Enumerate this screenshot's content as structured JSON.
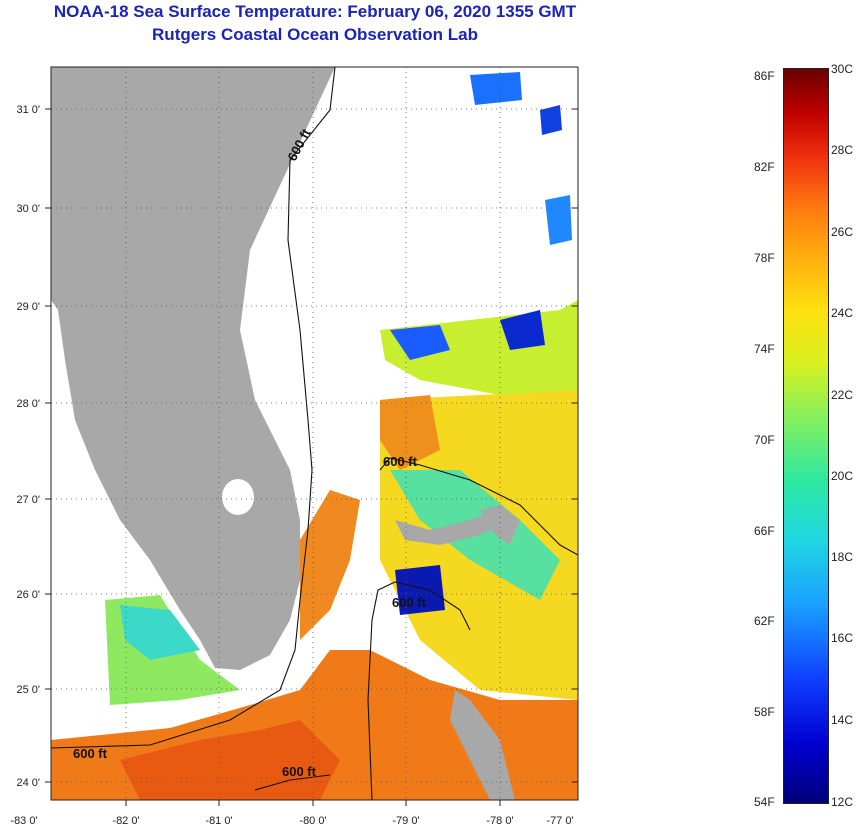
{
  "header": {
    "title": "NOAA-18 Sea Surface Temperature:  February 06, 2020 1355 GMT",
    "subtitle": "Rutgers Coastal Ocean Observation Lab"
  },
  "map": {
    "lat_ticks": [
      "31 0'",
      "30 0'",
      "29 0'",
      "28 0'",
      "27 0'",
      "26 0'",
      "25 0'",
      "24 0'"
    ],
    "lon_ticks": [
      "-83 0'",
      "-82 0'",
      "-81 0'",
      "-80 0'",
      "-79 0'",
      "-78 0'",
      "-77 0'"
    ],
    "contour_labels": [
      "600 ft",
      "600 ft",
      "600 ft",
      "600 ft",
      "600 ft"
    ]
  },
  "colorbar": {
    "fahrenheit": [
      "86F",
      "82F",
      "78F",
      "74F",
      "70F",
      "66F",
      "62F",
      "58F",
      "54F"
    ],
    "celsius": [
      "30C",
      "28C",
      "26C",
      "24C",
      "22C",
      "20C",
      "18C",
      "16C",
      "14C",
      "12C"
    ]
  },
  "colors": {
    "title": "#1a24b8",
    "land": "#a8a8a8",
    "cloud": "#ffffff"
  }
}
